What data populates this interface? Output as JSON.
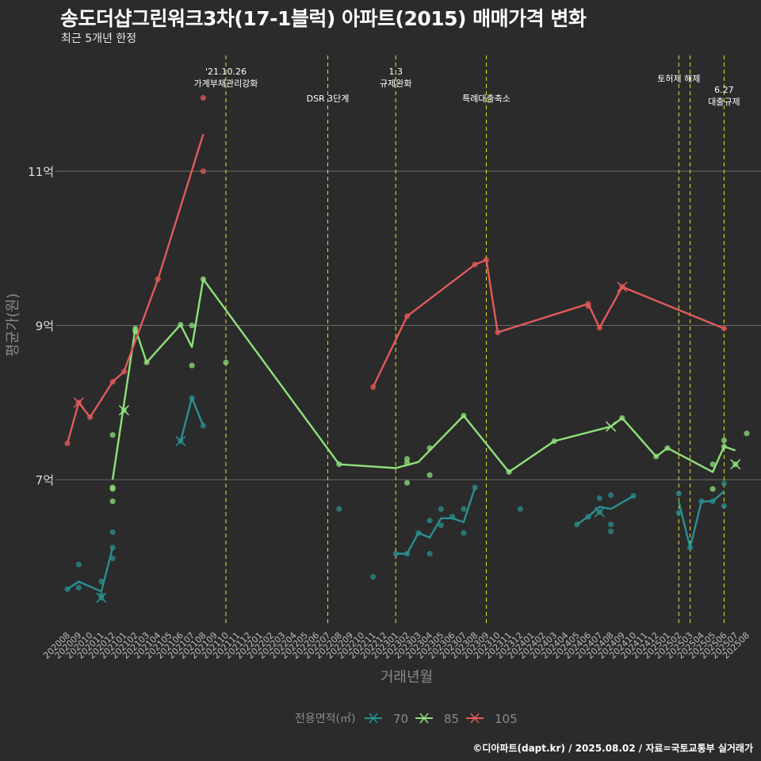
{
  "title": "송도더샵그린워크3차(17-1블럭) 아파트(2015) 매매가격 변화",
  "subtitle": "최근 5개년 한정",
  "caption": "©디아파트(dapt.kr) / 2025.08.02 / 자료=국토교통부 실거래가",
  "colors": {
    "background": "#2b2b2b",
    "grid": "#6b6b6b",
    "event_line": "#e5e52e",
    "axis_text": "#8a8a8a"
  },
  "chart_data": {
    "type": "line",
    "xlabel": "거래년월",
    "ylabel": "평균가(원)",
    "ylim": [
      5.1,
      12.5
    ],
    "yticks": [
      {
        "value": 7,
        "label": "7억"
      },
      {
        "value": 9,
        "label": "9억"
      },
      {
        "value": 11,
        "label": "11억"
      }
    ],
    "categories": [
      "202008",
      "202009",
      "202010",
      "202011",
      "202012",
      "202101",
      "202102",
      "202103",
      "202104",
      "202105",
      "202106",
      "202107",
      "202108",
      "202109",
      "202110",
      "202111",
      "202112",
      "202201",
      "202202",
      "202203",
      "202204",
      "202205",
      "202206",
      "202207",
      "202208",
      "202209",
      "202210",
      "202211",
      "202212",
      "202301",
      "202302",
      "202303",
      "202304",
      "202305",
      "202306",
      "202307",
      "202308",
      "202309",
      "202310",
      "202311",
      "202312",
      "202401",
      "202402",
      "202403",
      "202404",
      "202405",
      "202406",
      "202407",
      "202408",
      "202409",
      "202410",
      "202411",
      "202412",
      "202501",
      "202502",
      "202503",
      "202504",
      "202505",
      "202506",
      "202507",
      "202508"
    ],
    "legend": {
      "title": "전용면적(㎡)",
      "position": "bottom"
    },
    "events": [
      {
        "x": "202110",
        "label": [
          "'21.10.26",
          "가계부채관리강화"
        ],
        "level": 1
      },
      {
        "x": "202207",
        "label": [
          "DSR 3단계"
        ],
        "level": 2
      },
      {
        "x": "202301",
        "label": [
          "1.3",
          "규제완화"
        ],
        "level": 1
      },
      {
        "x": "202309",
        "label": [
          "특례대출축소"
        ],
        "level": 2
      },
      {
        "x": "202502",
        "label": [
          "토허제 해제"
        ],
        "level": 0
      },
      {
        "x": "202503",
        "label": [],
        "level": 0
      },
      {
        "x": "202506",
        "label": [
          "6.27",
          "대출규제"
        ],
        "level": 3
      }
    ],
    "series": [
      {
        "name": "70",
        "color": "#2a8f8f",
        "line": [
          [
            "202008",
            5.58
          ],
          [
            "202009",
            5.68
          ],
          [
            "202011",
            5.55
          ],
          [
            "202012",
            6.12
          ],
          [
            "202101",
            null
          ],
          [
            "202106",
            7.5
          ],
          [
            "202107",
            8.06
          ],
          [
            "202108",
            7.7
          ],
          [
            "202109",
            null
          ],
          [
            "202301",
            6.04
          ],
          [
            "202302",
            6.04
          ],
          [
            "202303",
            6.31
          ],
          [
            "202304",
            6.25
          ],
          [
            "202305",
            6.5
          ],
          [
            "202306",
            6.5
          ],
          [
            "202307",
            6.45
          ],
          [
            "202308",
            6.9
          ],
          [
            "202309",
            null
          ],
          [
            "202405",
            6.42
          ],
          [
            "202406",
            6.52
          ],
          [
            "202407",
            6.65
          ],
          [
            "202408",
            6.62
          ],
          [
            "202410",
            6.79
          ],
          [
            "202411",
            null
          ],
          [
            "202502",
            6.72
          ],
          [
            "202503",
            6.12
          ],
          [
            "202504",
            6.72
          ],
          [
            "202505",
            6.72
          ],
          [
            "202506",
            6.85
          ]
        ],
        "points": [
          [
            "202008",
            5.58
          ],
          [
            "202009",
            5.6
          ],
          [
            "202009",
            5.9
          ],
          [
            "202011",
            5.68
          ],
          [
            "202011",
            5.5
          ],
          [
            "202011",
            5.47
          ],
          [
            "202012",
            6.12
          ],
          [
            "202012",
            5.98
          ],
          [
            "202012",
            6.32
          ],
          [
            "202106",
            7.5
          ],
          [
            "202107",
            8.06
          ],
          [
            "202108",
            7.7
          ],
          [
            "202208",
            6.62
          ],
          [
            "202211",
            5.74
          ],
          [
            "202301",
            6.04
          ],
          [
            "202302",
            6.04
          ],
          [
            "202303",
            6.31
          ],
          [
            "202304",
            6.04
          ],
          [
            "202304",
            6.47
          ],
          [
            "202305",
            6.41
          ],
          [
            "202305",
            6.62
          ],
          [
            "202306",
            6.52
          ],
          [
            "202307",
            6.31
          ],
          [
            "202307",
            6.62
          ],
          [
            "202308",
            6.9
          ],
          [
            "202312",
            6.62
          ],
          [
            "202405",
            6.42
          ],
          [
            "202406",
            6.52
          ],
          [
            "202407",
            6.76
          ],
          [
            "202407",
            6.58
          ],
          [
            "202408",
            6.8
          ],
          [
            "202408",
            6.42
          ],
          [
            "202408",
            6.33
          ],
          [
            "202410",
            6.79
          ],
          [
            "202502",
            6.82
          ],
          [
            "202502",
            6.57
          ],
          [
            "202503",
            6.12
          ],
          [
            "202504",
            6.72
          ],
          [
            "202505",
            6.72
          ],
          [
            "202506",
            6.66
          ],
          [
            "202506",
            6.95
          ]
        ],
        "markers": [
          [
            "202011",
            5.47
          ],
          [
            "202106",
            7.5
          ],
          [
            "202407",
            6.58
          ]
        ]
      },
      {
        "name": "85",
        "color": "#8fe07a",
        "line": [
          [
            "202012",
            7.0
          ],
          [
            "202102",
            8.96
          ],
          [
            "202103",
            8.52
          ],
          [
            "202106",
            9.01
          ],
          [
            "202107",
            8.72
          ],
          [
            "202108",
            9.6
          ],
          [
            "202208",
            7.2
          ],
          [
            "202301",
            7.15
          ],
          [
            "202303",
            7.23
          ],
          [
            "202307",
            7.83
          ],
          [
            "202311",
            7.1
          ],
          [
            "202403",
            7.5
          ],
          [
            "202408",
            7.69
          ],
          [
            "202409",
            7.8
          ],
          [
            "202412",
            7.3
          ],
          [
            "202501",
            7.41
          ],
          [
            "202505",
            7.1
          ],
          [
            "202506",
            7.43
          ],
          [
            "202507",
            7.38
          ]
        ],
        "points": [
          [
            "202012",
            7.58
          ],
          [
            "202012",
            6.9
          ],
          [
            "202012",
            6.88
          ],
          [
            "202012",
            6.72
          ],
          [
            "202101",
            7.9
          ],
          [
            "202102",
            8.96
          ],
          [
            "202102",
            8.92
          ],
          [
            "202103",
            8.52
          ],
          [
            "202106",
            9.01
          ],
          [
            "202107",
            9.0
          ],
          [
            "202107",
            8.48
          ],
          [
            "202108",
            9.6
          ],
          [
            "202110",
            8.52
          ],
          [
            "202208",
            7.2
          ],
          [
            "202302",
            7.27
          ],
          [
            "202302",
            7.22
          ],
          [
            "202302",
            6.96
          ],
          [
            "202304",
            7.41
          ],
          [
            "202304",
            7.06
          ],
          [
            "202307",
            7.83
          ],
          [
            "202311",
            7.1
          ],
          [
            "202403",
            7.5
          ],
          [
            "202409",
            7.8
          ],
          [
            "202412",
            7.3
          ],
          [
            "202501",
            7.41
          ],
          [
            "202505",
            6.88
          ],
          [
            "202505",
            7.2
          ],
          [
            "202506",
            7.51
          ],
          [
            "202506",
            7.43
          ],
          [
            "202507",
            7.2
          ],
          [
            "202508",
            7.6
          ]
        ],
        "markers": [
          [
            "202101",
            7.9
          ],
          [
            "202408",
            7.69
          ],
          [
            "202507",
            7.2
          ]
        ]
      },
      {
        "name": "105",
        "color": "#e05a5a",
        "line": [
          [
            "202008",
            7.47
          ],
          [
            "202009",
            8.0
          ],
          [
            "202010",
            7.81
          ],
          [
            "202012",
            8.27
          ],
          [
            "202101",
            8.4
          ],
          [
            "202104",
            9.6
          ],
          [
            "202108",
            11.48
          ],
          [
            "202110",
            null
          ],
          [
            "202211",
            8.2
          ],
          [
            "202302",
            9.12
          ],
          [
            "202308",
            9.79
          ],
          [
            "202309",
            9.85
          ],
          [
            "202310",
            8.91
          ],
          [
            "202406",
            9.28
          ],
          [
            "202407",
            8.97
          ],
          [
            "202409",
            9.5
          ],
          [
            "202506",
            8.96
          ]
        ],
        "points": [
          [
            "202008",
            7.47
          ],
          [
            "202009",
            8.0
          ],
          [
            "202010",
            7.81
          ],
          [
            "202012",
            8.27
          ],
          [
            "202101",
            8.4
          ],
          [
            "202104",
            9.6
          ],
          [
            "202108",
            11.95
          ],
          [
            "202108",
            11.0
          ],
          [
            "202211",
            8.2
          ],
          [
            "202302",
            9.12
          ],
          [
            "202308",
            9.79
          ],
          [
            "202309",
            9.85
          ],
          [
            "202310",
            8.91
          ],
          [
            "202406",
            9.28
          ],
          [
            "202406",
            9.25
          ],
          [
            "202407",
            8.97
          ],
          [
            "202409",
            9.5
          ],
          [
            "202506",
            8.96
          ]
        ],
        "markers": [
          [
            "202009",
            8.0
          ],
          [
            "202409",
            9.5
          ]
        ]
      }
    ]
  }
}
